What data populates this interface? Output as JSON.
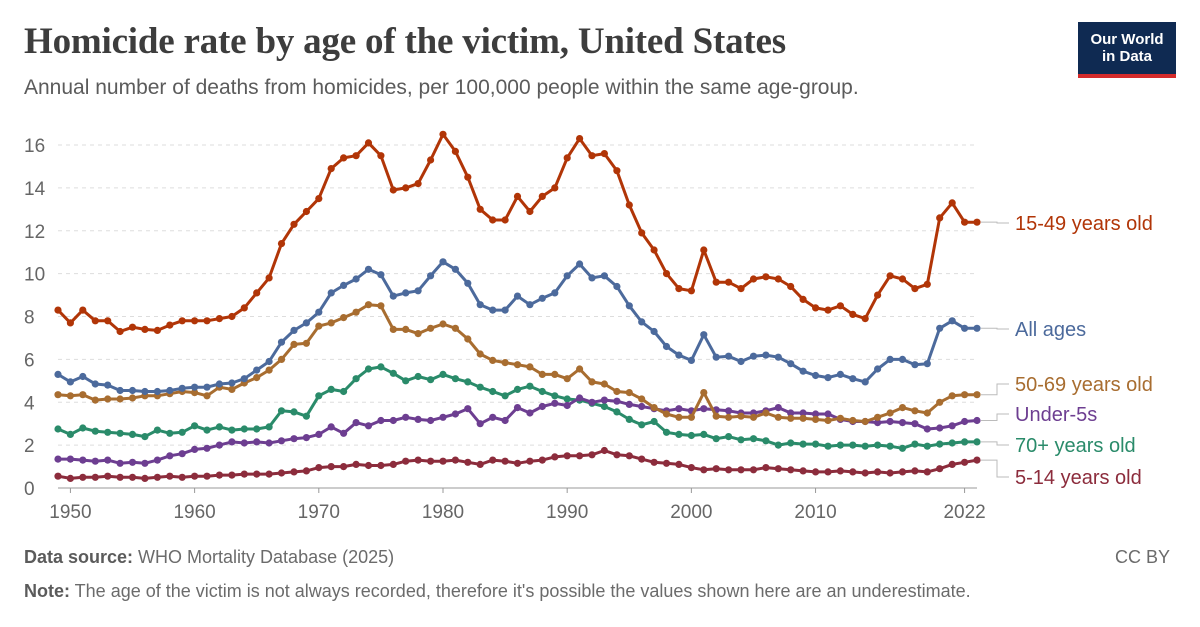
{
  "header": {
    "title": "Homicide rate by age of the victim, United States",
    "subtitle": "Annual number of deaths from homicides, per 100,000 people within the same age-group."
  },
  "logo": {
    "line1": "Our World",
    "line2": "in Data"
  },
  "footer": {
    "source_label": "Data source:",
    "source_text": " WHO Mortality Database (2025)",
    "note_label": "Note:",
    "note_text": " The age of the victim is not always recorded, therefore it's possible the values shown here are an underestimate.",
    "license": "CC BY"
  },
  "chart_data": {
    "type": "line",
    "title": "Homicide rate by age of the victim, United States",
    "xlabel": "",
    "ylabel": "",
    "xlim": [
      1949,
      2023
    ],
    "ylim": [
      0,
      16
    ],
    "x_ticks": [
      1950,
      1960,
      1970,
      1980,
      1990,
      2000,
      2010,
      2022
    ],
    "y_ticks": [
      0,
      2,
      4,
      6,
      8,
      10,
      12,
      14,
      16
    ],
    "grid": "horizontal-dashed",
    "legend": "right-end-labels",
    "series": [
      {
        "name": "15-49 years old",
        "color": "#b13507",
        "x": [
          1949,
          1950,
          1951,
          1952,
          1953,
          1954,
          1955,
          1956,
          1957,
          1958,
          1959,
          1960,
          1961,
          1962,
          1963,
          1964,
          1965,
          1966,
          1967,
          1968,
          1969,
          1970,
          1971,
          1972,
          1973,
          1974,
          1975,
          1976,
          1977,
          1978,
          1979,
          1980,
          1981,
          1982,
          1983,
          1984,
          1985,
          1986,
          1987,
          1988,
          1989,
          1990,
          1991,
          1992,
          1993,
          1994,
          1995,
          1996,
          1997,
          1998,
          1999,
          2000,
          2001,
          2002,
          2003,
          2004,
          2005,
          2006,
          2007,
          2008,
          2009,
          2010,
          2011,
          2012,
          2013,
          2014,
          2015,
          2016,
          2017,
          2018,
          2019,
          2020,
          2021,
          2022,
          2023
        ],
        "values": [
          8.3,
          7.7,
          8.3,
          7.8,
          7.8,
          7.3,
          7.5,
          7.4,
          7.35,
          7.6,
          7.8,
          7.8,
          7.8,
          7.9,
          8.0,
          8.4,
          9.1,
          9.8,
          11.4,
          12.3,
          12.9,
          13.5,
          14.9,
          15.4,
          15.5,
          16.1,
          15.5,
          13.9,
          14.0,
          14.2,
          15.3,
          16.5,
          15.7,
          14.5,
          13.0,
          12.5,
          12.5,
          13.6,
          12.9,
          13.6,
          14.0,
          15.4,
          16.3,
          15.5,
          15.6,
          14.8,
          13.2,
          11.9,
          11.1,
          10.0,
          9.3,
          9.2,
          11.1,
          9.6,
          9.6,
          9.3,
          9.75,
          9.85,
          9.75,
          9.4,
          8.8,
          8.4,
          8.3,
          8.5,
          8.1,
          7.9,
          9.0,
          9.9,
          9.75,
          9.3,
          9.5,
          12.6,
          13.3,
          12.4,
          12.4
        ]
      },
      {
        "name": "All ages",
        "color": "#4c6a9c",
        "x": [
          1949,
          1950,
          1951,
          1952,
          1953,
          1954,
          1955,
          1956,
          1957,
          1958,
          1959,
          1960,
          1961,
          1962,
          1963,
          1964,
          1965,
          1966,
          1967,
          1968,
          1969,
          1970,
          1971,
          1972,
          1973,
          1974,
          1975,
          1976,
          1977,
          1978,
          1979,
          1980,
          1981,
          1982,
          1983,
          1984,
          1985,
          1986,
          1987,
          1988,
          1989,
          1990,
          1991,
          1992,
          1993,
          1994,
          1995,
          1996,
          1997,
          1998,
          1999,
          2000,
          2001,
          2002,
          2003,
          2004,
          2005,
          2006,
          2007,
          2008,
          2009,
          2010,
          2011,
          2012,
          2013,
          2014,
          2015,
          2016,
          2017,
          2018,
          2019,
          2020,
          2021,
          2022,
          2023
        ],
        "values": [
          5.3,
          4.95,
          5.2,
          4.85,
          4.8,
          4.55,
          4.55,
          4.5,
          4.5,
          4.55,
          4.65,
          4.7,
          4.7,
          4.85,
          4.9,
          5.1,
          5.5,
          5.9,
          6.8,
          7.35,
          7.7,
          8.2,
          9.1,
          9.45,
          9.75,
          10.2,
          9.95,
          8.95,
          9.1,
          9.2,
          9.9,
          10.55,
          10.2,
          9.55,
          8.55,
          8.3,
          8.3,
          8.95,
          8.55,
          8.85,
          9.1,
          9.9,
          10.45,
          9.8,
          9.9,
          9.4,
          8.5,
          7.75,
          7.3,
          6.6,
          6.2,
          5.95,
          7.15,
          6.1,
          6.15,
          5.9,
          6.15,
          6.2,
          6.1,
          5.8,
          5.45,
          5.25,
          5.15,
          5.3,
          5.1,
          4.95,
          5.55,
          6.0,
          6.0,
          5.75,
          5.8,
          7.45,
          7.8,
          7.45,
          7.45
        ]
      },
      {
        "name": "50-69 years old",
        "color": "#a86d30",
        "x": [
          1949,
          1950,
          1951,
          1952,
          1953,
          1954,
          1955,
          1956,
          1957,
          1958,
          1959,
          1960,
          1961,
          1962,
          1963,
          1964,
          1965,
          1966,
          1967,
          1968,
          1969,
          1970,
          1971,
          1972,
          1973,
          1974,
          1975,
          1976,
          1977,
          1978,
          1979,
          1980,
          1981,
          1982,
          1983,
          1984,
          1985,
          1986,
          1987,
          1988,
          1989,
          1990,
          1991,
          1992,
          1993,
          1994,
          1995,
          1996,
          1997,
          1998,
          1999,
          2000,
          2001,
          2002,
          2003,
          2004,
          2005,
          2006,
          2007,
          2008,
          2009,
          2010,
          2011,
          2012,
          2013,
          2014,
          2015,
          2016,
          2017,
          2018,
          2019,
          2020,
          2021,
          2022,
          2023
        ],
        "values": [
          4.35,
          4.3,
          4.35,
          4.1,
          4.15,
          4.15,
          4.2,
          4.3,
          4.3,
          4.4,
          4.5,
          4.45,
          4.3,
          4.7,
          4.6,
          4.9,
          5.15,
          5.5,
          6.0,
          6.7,
          6.75,
          7.55,
          7.7,
          7.95,
          8.2,
          8.55,
          8.5,
          7.4,
          7.4,
          7.2,
          7.45,
          7.65,
          7.45,
          6.95,
          6.25,
          5.95,
          5.85,
          5.75,
          5.65,
          5.3,
          5.3,
          5.1,
          5.55,
          4.95,
          4.85,
          4.5,
          4.45,
          4.15,
          3.75,
          3.45,
          3.3,
          3.3,
          4.45,
          3.35,
          3.3,
          3.35,
          3.3,
          3.5,
          3.3,
          3.25,
          3.25,
          3.2,
          3.15,
          3.25,
          3.15,
          3.1,
          3.3,
          3.5,
          3.75,
          3.6,
          3.5,
          4.0,
          4.3,
          4.35,
          4.35
        ]
      },
      {
        "name": "Under-5s",
        "color": "#6d3e91",
        "x": [
          1949,
          1950,
          1951,
          1952,
          1953,
          1954,
          1955,
          1956,
          1957,
          1958,
          1959,
          1960,
          1961,
          1962,
          1963,
          1964,
          1965,
          1966,
          1967,
          1968,
          1969,
          1970,
          1971,
          1972,
          1973,
          1974,
          1975,
          1976,
          1977,
          1978,
          1979,
          1980,
          1981,
          1982,
          1983,
          1984,
          1985,
          1986,
          1987,
          1988,
          1989,
          1990,
          1991,
          1992,
          1993,
          1994,
          1995,
          1996,
          1997,
          1998,
          1999,
          2000,
          2001,
          2002,
          2003,
          2004,
          2005,
          2006,
          2007,
          2008,
          2009,
          2010,
          2011,
          2012,
          2013,
          2014,
          2015,
          2016,
          2017,
          2018,
          2019,
          2020,
          2021,
          2022,
          2023
        ],
        "values": [
          1.35,
          1.35,
          1.3,
          1.25,
          1.3,
          1.15,
          1.2,
          1.15,
          1.3,
          1.5,
          1.6,
          1.8,
          1.85,
          2.0,
          2.15,
          2.1,
          2.15,
          2.1,
          2.2,
          2.3,
          2.35,
          2.5,
          2.85,
          2.55,
          3.05,
          2.9,
          3.15,
          3.15,
          3.3,
          3.2,
          3.15,
          3.3,
          3.45,
          3.7,
          3.0,
          3.3,
          3.15,
          3.75,
          3.5,
          3.8,
          3.95,
          3.85,
          4.2,
          4.0,
          4.1,
          4.05,
          3.9,
          3.8,
          3.7,
          3.6,
          3.7,
          3.6,
          3.7,
          3.65,
          3.6,
          3.5,
          3.5,
          3.6,
          3.75,
          3.5,
          3.5,
          3.45,
          3.45,
          3.2,
          3.1,
          3.1,
          3.05,
          3.1,
          3.05,
          3.0,
          2.75,
          2.8,
          2.9,
          3.1,
          3.15
        ]
      },
      {
        "name": "70+ years old",
        "color": "#2a8b6a",
        "x": [
          1949,
          1950,
          1951,
          1952,
          1953,
          1954,
          1955,
          1956,
          1957,
          1958,
          1959,
          1960,
          1961,
          1962,
          1963,
          1964,
          1965,
          1966,
          1967,
          1968,
          1969,
          1970,
          1971,
          1972,
          1973,
          1974,
          1975,
          1976,
          1977,
          1978,
          1979,
          1980,
          1981,
          1982,
          1983,
          1984,
          1985,
          1986,
          1987,
          1988,
          1989,
          1990,
          1991,
          1992,
          1993,
          1994,
          1995,
          1996,
          1997,
          1998,
          1999,
          2000,
          2001,
          2002,
          2003,
          2004,
          2005,
          2006,
          2007,
          2008,
          2009,
          2010,
          2011,
          2012,
          2013,
          2014,
          2015,
          2016,
          2017,
          2018,
          2019,
          2020,
          2021,
          2022,
          2023
        ],
        "values": [
          2.75,
          2.5,
          2.8,
          2.65,
          2.6,
          2.55,
          2.5,
          2.4,
          2.7,
          2.55,
          2.6,
          2.9,
          2.7,
          2.85,
          2.7,
          2.75,
          2.75,
          2.85,
          3.6,
          3.55,
          3.35,
          4.3,
          4.6,
          4.5,
          5.1,
          5.55,
          5.65,
          5.35,
          5.0,
          5.2,
          5.05,
          5.3,
          5.1,
          4.95,
          4.7,
          4.5,
          4.3,
          4.6,
          4.75,
          4.5,
          4.3,
          4.15,
          4.1,
          3.95,
          3.8,
          3.55,
          3.2,
          2.95,
          3.1,
          2.6,
          2.5,
          2.45,
          2.5,
          2.3,
          2.4,
          2.25,
          2.3,
          2.2,
          2.0,
          2.1,
          2.05,
          2.05,
          1.95,
          2.0,
          2.0,
          1.95,
          2.0,
          1.95,
          1.85,
          2.05,
          1.95,
          2.05,
          2.1,
          2.15,
          2.15
        ]
      },
      {
        "name": "5-14 years old",
        "color": "#8c2c3c",
        "x": [
          1949,
          1950,
          1951,
          1952,
          1953,
          1954,
          1955,
          1956,
          1957,
          1958,
          1959,
          1960,
          1961,
          1962,
          1963,
          1964,
          1965,
          1966,
          1967,
          1968,
          1969,
          1970,
          1971,
          1972,
          1973,
          1974,
          1975,
          1976,
          1977,
          1978,
          1979,
          1980,
          1981,
          1982,
          1983,
          1984,
          1985,
          1986,
          1987,
          1988,
          1989,
          1990,
          1991,
          1992,
          1993,
          1994,
          1995,
          1996,
          1997,
          1998,
          1999,
          2000,
          2001,
          2002,
          2003,
          2004,
          2005,
          2006,
          2007,
          2008,
          2009,
          2010,
          2011,
          2012,
          2013,
          2014,
          2015,
          2016,
          2017,
          2018,
          2019,
          2020,
          2021,
          2022,
          2023
        ],
        "values": [
          0.55,
          0.45,
          0.5,
          0.5,
          0.55,
          0.5,
          0.5,
          0.45,
          0.5,
          0.55,
          0.5,
          0.55,
          0.55,
          0.6,
          0.6,
          0.65,
          0.65,
          0.65,
          0.7,
          0.75,
          0.8,
          0.95,
          1.0,
          1.0,
          1.1,
          1.05,
          1.05,
          1.1,
          1.25,
          1.3,
          1.25,
          1.25,
          1.3,
          1.2,
          1.1,
          1.3,
          1.25,
          1.15,
          1.25,
          1.3,
          1.45,
          1.5,
          1.5,
          1.55,
          1.75,
          1.55,
          1.5,
          1.35,
          1.2,
          1.15,
          1.1,
          0.95,
          0.85,
          0.9,
          0.85,
          0.85,
          0.85,
          0.95,
          0.9,
          0.85,
          0.8,
          0.75,
          0.75,
          0.8,
          0.75,
          0.7,
          0.75,
          0.7,
          0.75,
          0.8,
          0.75,
          0.9,
          1.1,
          1.2,
          1.3
        ]
      }
    ]
  }
}
